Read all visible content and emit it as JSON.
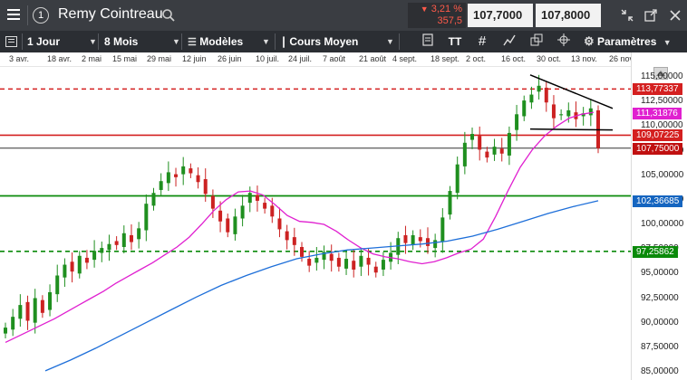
{
  "titlebar": {
    "index": "1",
    "instrument": "Remy Cointreau",
    "change_pct": "3,21 %",
    "change_abs": "357,5",
    "bid": "107,7000",
    "ask": "107,8000"
  },
  "toolbar": {
    "period": "1 Jour",
    "range": "8 Mois",
    "models": "Modèles",
    "price_type": "Cours Moyen",
    "settings": "Paramètres"
  },
  "chart_data": {
    "type": "candlestick",
    "x_dates": [
      "3 avr.",
      "18 avr.",
      "2 mai",
      "15 mai",
      "29 mai",
      "12 juin",
      "26 juin",
      "10 juil.",
      "24 juil.",
      "7 août",
      "21 août",
      "4 sept.",
      "18 sept.",
      "2 oct.",
      "16 oct.",
      "30 oct.",
      "13 nov.",
      "26 nov."
    ],
    "y_ticks": [
      "115,00000",
      "112,50000",
      "110,00000",
      "107,50000",
      "105,00000",
      "102,50000",
      "100,00000",
      "97,50000",
      "95,00000",
      "92,50000",
      "90,00000",
      "87,50000",
      "85,00000"
    ],
    "ylim": [
      85,
      116
    ],
    "levels": [
      {
        "label": "113,77337",
        "value": 113.77,
        "color": "#d42020",
        "style": "dashed"
      },
      {
        "label": "111,31876",
        "value": 111.32,
        "color": "#e020d0",
        "style": "tag"
      },
      {
        "label": "109,07225",
        "value": 109.07,
        "color": "#d42020",
        "style": "solid"
      },
      {
        "label": "107,75000",
        "value": 107.75,
        "color": "#c01010",
        "style": "price"
      },
      {
        "label": "102,36685",
        "value": 102.37,
        "color": "#1565c0",
        "style": "tag"
      },
      {
        "label": "97,25862",
        "value": 97.26,
        "color": "#0a8a0a",
        "style": "dashed"
      }
    ],
    "close_series": [
      89.5,
      90.6,
      91.8,
      90.2,
      92.5,
      91.0,
      93.1,
      94.8,
      95.9,
      95.2,
      96.8,
      96.1,
      97.3,
      97.6,
      98.0,
      97.9,
      99.1,
      98.2,
      99.6,
      102.1,
      103.2,
      104.4,
      105.3,
      104.8,
      105.9,
      105.2,
      104.3,
      103.1,
      101.6,
      100.3,
      99.2,
      100.8,
      101.9,
      103.2,
      102.4,
      101.6,
      100.8,
      99.5,
      98.4,
      97.9,
      96.7,
      95.8,
      96.6,
      97.2,
      96.3,
      95.7,
      96.5,
      95.4,
      96.8,
      95.9,
      95.1,
      96.4,
      97.1,
      98.6,
      98.1,
      98.9,
      98.3,
      97.8,
      98.4,
      100.7,
      103.4,
      106.1,
      108.3,
      109.2,
      107.6,
      106.8,
      107.9,
      107.2,
      109.3,
      111.2,
      112.6,
      113.2,
      114.1,
      112.4,
      110.8,
      111.2,
      111.6,
      110.7,
      111.3,
      111.8,
      107.75
    ],
    "ma_short": [
      88.0,
      88.6,
      89.2,
      89.8,
      90.4,
      91.1,
      91.8,
      92.5,
      93.2,
      94.0,
      94.7,
      95.4,
      96.1,
      96.9,
      97.7,
      98.7,
      100.0,
      101.4,
      102.5,
      103.3,
      103.4,
      103.0,
      102.0,
      100.9,
      100.3,
      100.2,
      100.0,
      99.3,
      98.4,
      97.6,
      97.0,
      96.7,
      96.5,
      96.2,
      96.0,
      96.2,
      96.6,
      97.1,
      97.5,
      98.5,
      100.8,
      103.4,
      105.8,
      107.6,
      109.0,
      110.0,
      110.8,
      111.2,
      111.4
    ],
    "ma_long": [
      85.1,
      86.2,
      87.4,
      88.7,
      90.0,
      91.3,
      92.6,
      93.8,
      94.8,
      95.7,
      96.5,
      97.0,
      97.4,
      97.6,
      97.8,
      98.0,
      98.3,
      98.8,
      99.5,
      100.3,
      101.1,
      101.8,
      102.4
    ]
  }
}
